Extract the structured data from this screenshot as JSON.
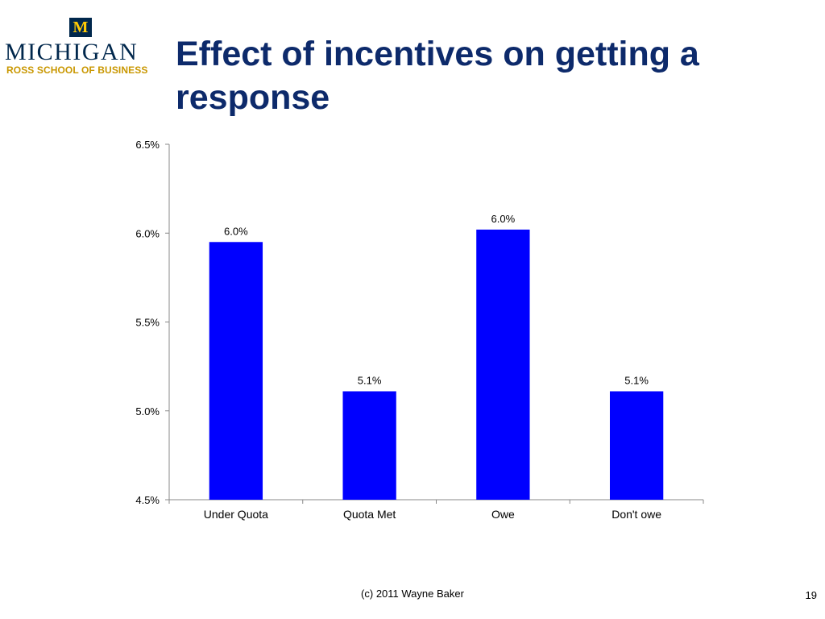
{
  "logo": {
    "emblem": "M",
    "wordmark": "MICHIGAN",
    "subtitle": "ROSS SCHOOL OF BUSINESS",
    "colors": {
      "blue": "#00274c",
      "maize": "#ffcb05",
      "gold": "#c99700"
    }
  },
  "slide": {
    "title": "Effect of incentives on getting a response",
    "footer": "(c) 2011 Wayne Baker",
    "page_number": "19"
  },
  "chart_data": {
    "type": "bar",
    "categories": [
      "Under Quota",
      "Quota Met",
      "Owe",
      "Don't owe"
    ],
    "values": [
      5.95,
      5.11,
      6.02,
      5.11
    ],
    "data_labels": [
      "6.0%",
      "5.1%",
      "6.0%",
      "5.1%"
    ],
    "ylim": [
      4.5,
      6.5
    ],
    "yticks": [
      4.5,
      5.0,
      5.5,
      6.0,
      6.5
    ],
    "ytick_labels": [
      "4.5%",
      "5.0%",
      "5.5%",
      "6.0%",
      "6.5%"
    ],
    "bar_color": "#0000ff",
    "grid": false,
    "legend": "none"
  }
}
